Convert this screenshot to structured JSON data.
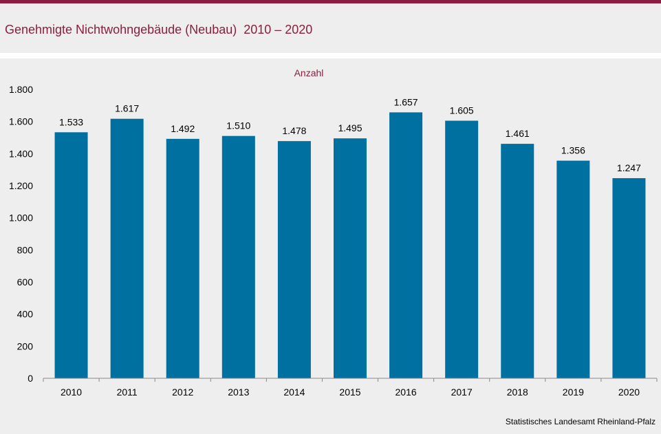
{
  "header": {
    "title": "Genehmigte Nichtwohngebäude (Neubau)  2010 – 2020"
  },
  "source": "Statistisches Landesamt  Rheinland-Pfalz",
  "colors": {
    "accent": "#8b1e3f",
    "bar": "#0070a0",
    "background": "#eeeeee"
  },
  "chart_data": {
    "type": "bar",
    "title": "Genehmigte Nichtwohngebäude (Neubau)  2010 – 2020",
    "ylabel": "Anzahl",
    "xlabel": "",
    "categories": [
      "2010",
      "2011",
      "2012",
      "2013",
      "2014",
      "2015",
      "2016",
      "2017",
      "2018",
      "2019",
      "2020"
    ],
    "values": [
      1533,
      1617,
      1492,
      1510,
      1478,
      1495,
      1657,
      1605,
      1461,
      1356,
      1247
    ],
    "value_labels": [
      "1.533",
      "1.617",
      "1.492",
      "1.510",
      "1.478",
      "1.495",
      "1.657",
      "1.605",
      "1.461",
      "1.356",
      "1.247"
    ],
    "yticks": [
      0,
      200,
      400,
      600,
      800,
      1000,
      1200,
      1400,
      1600,
      1800
    ],
    "ytick_labels": [
      "0",
      "200",
      "400",
      "600",
      "800",
      "1.000",
      "1.200",
      "1.400",
      "1.600",
      "1.800"
    ],
    "ylim": [
      0,
      1800
    ],
    "grid": false,
    "legend": "none"
  }
}
